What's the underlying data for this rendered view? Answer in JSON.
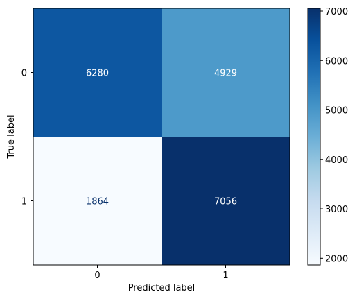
{
  "chart_data": {
    "type": "heatmap",
    "title": "",
    "xlabel": "Predicted label",
    "ylabel": "True label",
    "x_categories": [
      "0",
      "1"
    ],
    "y_categories": [
      "0",
      "1"
    ],
    "values": [
      [
        6280,
        4929
      ],
      [
        1864,
        7056
      ]
    ],
    "colormap": "Blues",
    "colorbar": {
      "range": [
        1864,
        7056
      ],
      "ticks": [
        "2000",
        "3000",
        "4000",
        "5000",
        "6000",
        "7000"
      ]
    },
    "grid": false,
    "legend": "none"
  }
}
